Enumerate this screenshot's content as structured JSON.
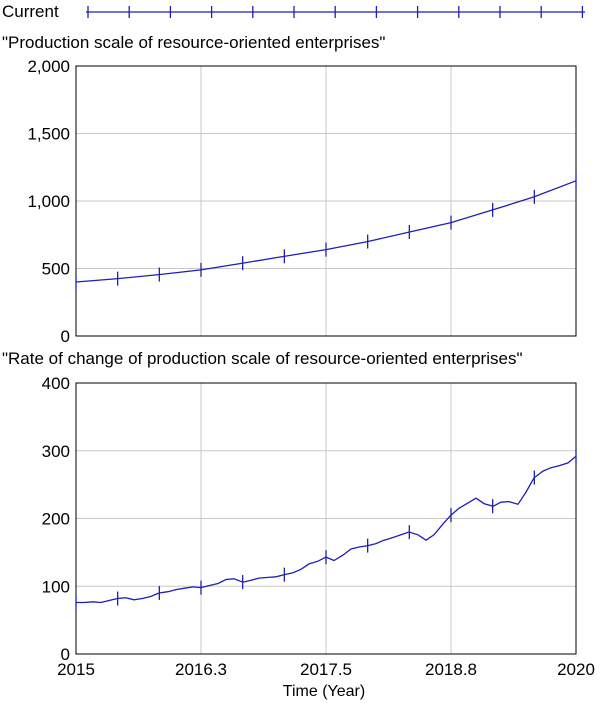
{
  "legend": {
    "label": "Current",
    "color": "#1f1fb4"
  },
  "chart_data": [
    {
      "type": "line",
      "title": "\"Production scale of resource-oriented enterprises\"",
      "xlabel": "",
      "ylabel": "",
      "xlim": [
        2015,
        2020
      ],
      "ylim": [
        0,
        2000
      ],
      "y_ticks": [
        0,
        500,
        1000,
        1500,
        2000
      ],
      "y_tick_labels": [
        "0",
        "500",
        "1,000",
        "1,500",
        "2,000"
      ],
      "x_ticks": [
        2015,
        2016.25,
        2017.5,
        2018.75,
        2020
      ],
      "grid": true,
      "series": [
        {
          "name": "Current",
          "color": "#1f1fb4",
          "x": [
            2015,
            2015.42,
            2015.83,
            2016.25,
            2016.67,
            2017.08,
            2017.5,
            2017.92,
            2018.33,
            2018.75,
            2019.17,
            2019.58,
            2020
          ],
          "y": [
            400,
            425,
            455,
            490,
            540,
            590,
            640,
            700,
            770,
            840,
            935,
            1030,
            1150
          ]
        }
      ]
    },
    {
      "type": "line",
      "title": "\"Rate of change of production scale of resource-oriented enterprises\"",
      "xlabel": "Time (Year)",
      "ylabel": "",
      "xlim": [
        2015,
        2020
      ],
      "ylim": [
        0,
        400
      ],
      "y_ticks": [
        0,
        100,
        200,
        300,
        400
      ],
      "y_tick_labels": [
        "0",
        "100",
        "200",
        "300",
        "400"
      ],
      "x_ticks": [
        2015,
        2016.25,
        2017.5,
        2018.75,
        2020
      ],
      "x_tick_labels": [
        "2015",
        "2016.3",
        "2017.5",
        "2018.8",
        "2020"
      ],
      "grid": true,
      "series": [
        {
          "name": "Current",
          "color": "#1f1fb4",
          "x": [
            2015,
            2015.08,
            2015.17,
            2015.25,
            2015.33,
            2015.42,
            2015.5,
            2015.58,
            2015.67,
            2015.75,
            2015.83,
            2015.92,
            2016,
            2016.08,
            2016.17,
            2016.25,
            2016.33,
            2016.42,
            2016.5,
            2016.58,
            2016.67,
            2016.75,
            2016.83,
            2016.92,
            2017,
            2017.08,
            2017.17,
            2017.25,
            2017.33,
            2017.42,
            2017.5,
            2017.58,
            2017.67,
            2017.75,
            2017.83,
            2017.92,
            2018,
            2018.08,
            2018.17,
            2018.25,
            2018.33,
            2018.42,
            2018.5,
            2018.58,
            2018.67,
            2018.75,
            2018.83,
            2018.92,
            2019,
            2019.08,
            2019.17,
            2019.25,
            2019.33,
            2019.42,
            2019.5,
            2019.58,
            2019.67,
            2019.75,
            2019.83,
            2019.92,
            2020
          ],
          "y": [
            76,
            76,
            77,
            76,
            79,
            82,
            83,
            80,
            82,
            85,
            90,
            92,
            95,
            97,
            99,
            98,
            101,
            104,
            110,
            111,
            106,
            109,
            112,
            113,
            114,
            117,
            120,
            125,
            133,
            137,
            143,
            138,
            146,
            155,
            158,
            160,
            163,
            168,
            172,
            176,
            180,
            176,
            168,
            176,
            192,
            205,
            215,
            223,
            230,
            222,
            218,
            224,
            225,
            221,
            239,
            260,
            270,
            275,
            278,
            282,
            292
          ]
        }
      ]
    }
  ]
}
